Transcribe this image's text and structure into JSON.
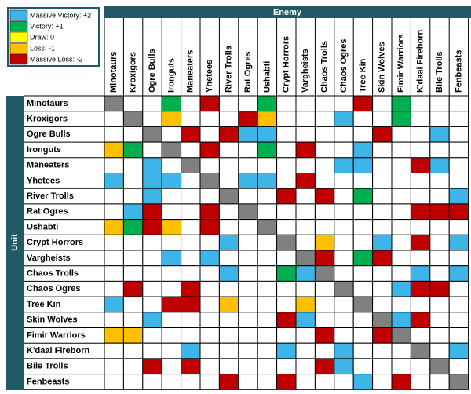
{
  "chart_data": {
    "type": "heatmap",
    "title": "Enemy",
    "y_label": "Unit",
    "x_categories": [
      "Minotaurs",
      "Kroxigors",
      "Ogre Bulls",
      "Ironguts",
      "Maneaters",
      "Yhetees",
      "River Trolls",
      "Rat Ogres",
      "Ushabti",
      "Crypt Horrors",
      "Vargheists",
      "Chaos Trolls",
      "Chaos Ogres",
      "Tree Kin",
      "Skin Wolves",
      "Fimir Warriors",
      "K'daai Fireborn",
      "Bile Trolls",
      "Fenbeasts"
    ],
    "y_categories": [
      "Minotaurs",
      "Kroxigors",
      "Ogre Bulls",
      "Ironguts",
      "Maneaters",
      "Yhetees",
      "River Trolls",
      "Rat Ogres",
      "Ushabti",
      "Crypt Horrors",
      "Vargheists",
      "Chaos Trolls",
      "Chaos Ogres",
      "Tree Kin",
      "Skin Wolves",
      "Fimir Warriors",
      "K'daai Fireborn",
      "Bile Trolls",
      "Fenbeasts"
    ],
    "legend": [
      {
        "label": "Massive Victory: +2",
        "value": 2,
        "color": "#3db5e8"
      },
      {
        "label": "Victory: +1",
        "value": 1,
        "color": "#00b050"
      },
      {
        "label": "Draw: 0",
        "value": 0,
        "color": "#ffff00"
      },
      {
        "label": "Loss: -1",
        "value": -1,
        "color": "#ffc000"
      },
      {
        "label": "Massive Loss: -2",
        "value": -2,
        "color": "#c00000"
      }
    ],
    "diagonal_color": "#808080",
    "values": [
      [
        null,
        null,
        null,
        1,
        null,
        -2,
        null,
        null,
        1,
        null,
        null,
        null,
        null,
        -2,
        null,
        1,
        null,
        null,
        null
      ],
      [
        null,
        null,
        null,
        -1,
        null,
        null,
        null,
        -2,
        -1,
        null,
        null,
        null,
        2,
        null,
        null,
        1,
        null,
        null,
        null
      ],
      [
        null,
        null,
        null,
        null,
        -2,
        null,
        -2,
        2,
        2,
        null,
        null,
        null,
        null,
        null,
        -2,
        null,
        null,
        2,
        null
      ],
      [
        -1,
        1,
        null,
        null,
        null,
        -2,
        null,
        null,
        1,
        null,
        -2,
        null,
        null,
        2,
        null,
        null,
        null,
        null,
        null
      ],
      [
        null,
        null,
        2,
        null,
        null,
        null,
        null,
        null,
        null,
        null,
        null,
        null,
        2,
        2,
        null,
        null,
        -2,
        2,
        null
      ],
      [
        2,
        null,
        2,
        2,
        null,
        null,
        null,
        2,
        2,
        null,
        -2,
        null,
        null,
        null,
        null,
        null,
        null,
        null,
        null
      ],
      [
        null,
        null,
        2,
        null,
        null,
        null,
        null,
        null,
        null,
        -2,
        null,
        -2,
        null,
        1,
        null,
        null,
        null,
        null,
        2
      ],
      [
        null,
        2,
        -2,
        null,
        null,
        -2,
        null,
        null,
        null,
        null,
        null,
        null,
        null,
        null,
        null,
        null,
        -2,
        -2,
        -2
      ],
      [
        -1,
        1,
        -2,
        -1,
        null,
        -2,
        null,
        null,
        null,
        null,
        null,
        null,
        null,
        null,
        null,
        null,
        null,
        null,
        null
      ],
      [
        null,
        null,
        null,
        null,
        null,
        null,
        2,
        null,
        null,
        null,
        null,
        -1,
        null,
        null,
        2,
        null,
        -2,
        null,
        2
      ],
      [
        null,
        null,
        null,
        2,
        null,
        2,
        null,
        null,
        null,
        null,
        null,
        -2,
        null,
        1,
        -2,
        null,
        null,
        null,
        null
      ],
      [
        null,
        null,
        null,
        null,
        null,
        null,
        2,
        null,
        null,
        1,
        2,
        null,
        null,
        null,
        null,
        null,
        2,
        null,
        2
      ],
      [
        null,
        -2,
        null,
        null,
        -2,
        null,
        null,
        null,
        null,
        null,
        null,
        null,
        null,
        null,
        null,
        2,
        -2,
        -2,
        null
      ],
      [
        2,
        null,
        null,
        -2,
        -2,
        null,
        -1,
        null,
        null,
        null,
        -1,
        null,
        null,
        null,
        null,
        null,
        null,
        null,
        null
      ],
      [
        null,
        null,
        2,
        null,
        null,
        null,
        null,
        null,
        null,
        -2,
        2,
        null,
        null,
        null,
        null,
        2,
        -2,
        null,
        null
      ],
      [
        -1,
        -1,
        null,
        null,
        null,
        null,
        null,
        null,
        null,
        null,
        null,
        -2,
        null,
        null,
        -2,
        null,
        null,
        null,
        null
      ],
      [
        null,
        null,
        null,
        null,
        2,
        null,
        null,
        null,
        null,
        2,
        null,
        null,
        2,
        null,
        null,
        null,
        null,
        null,
        2
      ],
      [
        null,
        null,
        -2,
        null,
        -2,
        null,
        null,
        null,
        null,
        null,
        null,
        -2,
        2,
        null,
        null,
        null,
        null,
        null,
        null
      ],
      [
        null,
        null,
        null,
        null,
        null,
        null,
        -2,
        null,
        null,
        -2,
        null,
        null,
        null,
        2,
        null,
        -2,
        null,
        null,
        null
      ]
    ]
  }
}
